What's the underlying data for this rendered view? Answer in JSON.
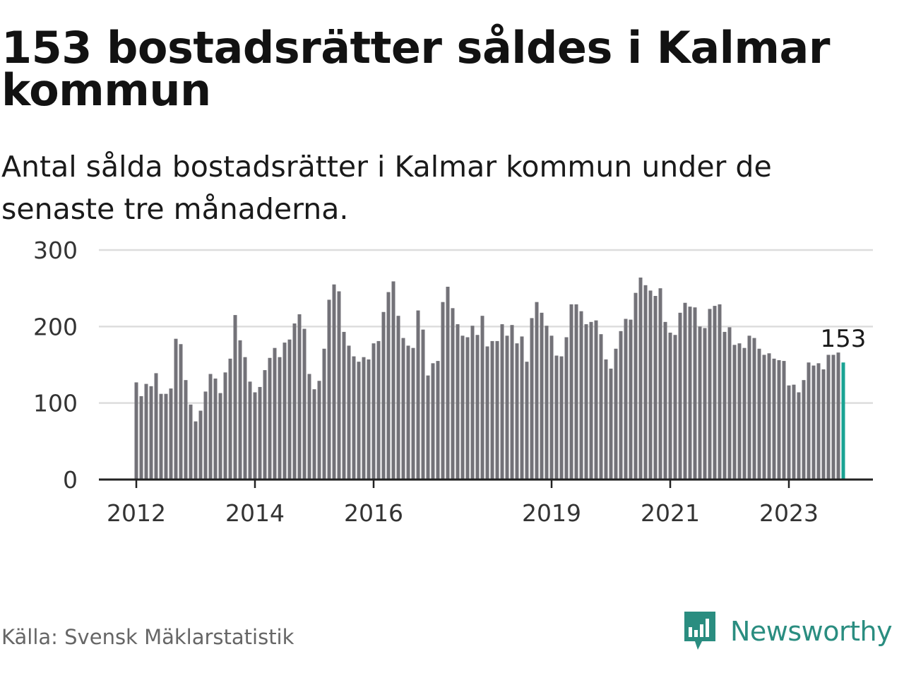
{
  "header": {
    "title": "153 bostadsrätter såldes i Kalmar kommun",
    "subtitle": "Antal sålda bostadsrätter i Kalmar kommun under de senaste tre månaderna."
  },
  "footer": {
    "source": "Källa: Svensk Mäklarstatistik",
    "brand": "Newsworthy"
  },
  "colors": {
    "bar": "#737278",
    "highlight": "#1aa393",
    "grid": "#dddddd",
    "axis": "#222222",
    "brand": "#2a8d80"
  },
  "chart_data": {
    "type": "bar",
    "title": "153 bostadsrätter såldes i Kalmar kommun",
    "subtitle": "Antal sålda bostadsrätter i Kalmar kommun under de senaste tre månaderna.",
    "xlabel": "",
    "ylabel": "",
    "ylim": [
      0,
      300
    ],
    "yticks": [
      0,
      100,
      200,
      300
    ],
    "grid": true,
    "x_start": "2012-01",
    "x_end": "2023-12",
    "xtick_labels": [
      {
        "label": "2012",
        "index": 0
      },
      {
        "label": "2014",
        "index": 24
      },
      {
        "label": "2016",
        "index": 48
      },
      {
        "label": "2019",
        "index": 84
      },
      {
        "label": "2021",
        "index": 108
      },
      {
        "label": "2023",
        "index": 132
      }
    ],
    "highlight_index": 143,
    "highlight_label": "153",
    "values": [
      127,
      109,
      125,
      122,
      139,
      112,
      112,
      119,
      184,
      177,
      130,
      98,
      76,
      90,
      115,
      138,
      132,
      113,
      140,
      158,
      215,
      182,
      160,
      128,
      114,
      121,
      143,
      159,
      172,
      160,
      179,
      183,
      204,
      216,
      197,
      138,
      118,
      129,
      171,
      235,
      255,
      246,
      193,
      175,
      161,
      154,
      160,
      157,
      178,
      181,
      219,
      245,
      259,
      214,
      185,
      175,
      172,
      221,
      196,
      136,
      152,
      155,
      232,
      252,
      224,
      203,
      188,
      186,
      201,
      189,
      214,
      174,
      181,
      181,
      203,
      188,
      202,
      178,
      187,
      154,
      211,
      232,
      218,
      201,
      188,
      162,
      161,
      186,
      229,
      229,
      220,
      203,
      206,
      208,
      190,
      157,
      145,
      171,
      194,
      210,
      209,
      244,
      264,
      254,
      247,
      240,
      250,
      206,
      192,
      189,
      218,
      231,
      226,
      225,
      200,
      198,
      223,
      227,
      229,
      193,
      199,
      176,
      178,
      172,
      188,
      185,
      171,
      163,
      165,
      158,
      156,
      155,
      123,
      124,
      114,
      130,
      153,
      149,
      152,
      144,
      163,
      163,
      166,
      153
    ]
  }
}
